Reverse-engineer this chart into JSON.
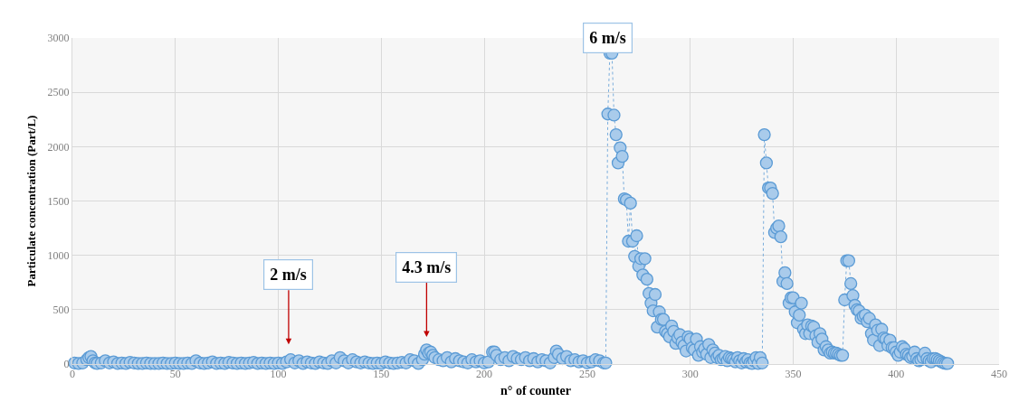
{
  "chart_data": {
    "type": "line",
    "xlabel": "n° of counter",
    "ylabel": "Particulate concentration (Part/L)",
    "xlim": [
      0,
      450
    ],
    "xticks": [
      0,
      50,
      100,
      150,
      200,
      250,
      300,
      350,
      400,
      450
    ],
    "ylim": [
      0,
      3000
    ],
    "yticks": [
      0,
      500,
      1000,
      1500,
      2000,
      2500,
      3000
    ],
    "grid": true,
    "marker": "circle",
    "line_style": "dotted",
    "annotations": [
      "2 m/s",
      "4.3 m/s",
      "6 m/s"
    ],
    "series": [
      {
        "color": "#a9cbeb",
        "x": [
          1,
          3,
          5,
          7,
          8,
          9,
          10,
          11,
          12,
          14,
          16,
          18,
          20,
          22,
          24,
          26,
          28,
          30,
          32,
          34,
          36,
          38,
          40,
          42,
          44,
          46,
          48,
          50,
          52,
          54,
          56,
          58,
          60,
          62,
          64,
          66,
          68,
          70,
          72,
          74,
          76,
          78,
          80,
          82,
          84,
          86,
          88,
          90,
          92,
          94,
          96,
          98,
          100,
          102,
          104,
          106,
          108,
          110,
          112,
          114,
          116,
          118,
          120,
          122,
          124,
          126,
          128,
          130,
          132,
          134,
          136,
          138,
          140,
          142,
          144,
          146,
          148,
          150,
          152,
          154,
          156,
          158,
          160,
          162,
          164,
          166,
          168,
          170,
          171,
          172,
          173,
          174,
          175,
          176,
          178,
          180,
          182,
          184,
          186,
          188,
          190,
          192,
          194,
          196,
          198,
          200,
          202,
          204,
          205,
          206,
          208,
          210,
          212,
          214,
          216,
          218,
          220,
          222,
          224,
          226,
          228,
          230,
          232,
          234,
          235,
          236,
          238,
          240,
          242,
          244,
          246,
          248,
          250,
          252,
          254,
          256,
          258,
          259,
          260,
          261,
          262,
          263,
          264,
          265,
          266,
          267,
          268,
          269,
          270,
          271,
          272,
          273,
          274,
          275,
          276,
          277,
          278,
          279,
          280,
          281,
          282,
          283,
          284,
          285,
          286,
          287,
          288,
          289,
          290,
          291,
          292,
          293,
          294,
          295,
          296,
          297,
          298,
          299,
          300,
          301,
          302,
          303,
          304,
          305,
          306,
          307,
          308,
          309,
          310,
          311,
          312,
          313,
          314,
          315,
          316,
          317,
          318,
          319,
          320,
          321,
          322,
          323,
          324,
          325,
          326,
          327,
          328,
          329,
          330,
          331,
          332,
          333,
          334,
          335,
          336,
          337,
          338,
          339,
          340,
          341,
          342,
          343,
          344,
          345,
          346,
          347,
          348,
          349,
          350,
          351,
          352,
          353,
          354,
          355,
          356,
          357,
          358,
          359,
          360,
          361,
          362,
          363,
          364,
          365,
          366,
          367,
          368,
          369,
          370,
          371,
          372,
          373,
          374,
          375,
          376,
          377,
          378,
          379,
          380,
          381,
          382,
          383,
          384,
          385,
          386,
          387,
          388,
          389,
          390,
          391,
          392,
          393,
          394,
          395,
          396,
          397,
          398,
          399,
          400,
          401,
          402,
          403,
          404,
          405,
          406,
          407,
          408,
          409,
          410,
          411,
          412,
          413,
          414,
          415,
          416,
          417,
          418,
          419,
          420,
          421,
          422,
          423,
          424,
          425
        ],
        "values": [
          10,
          5,
          10,
          40,
          60,
          70,
          30,
          10,
          5,
          10,
          30,
          10,
          20,
          5,
          10,
          5,
          15,
          10,
          5,
          5,
          10,
          5,
          5,
          5,
          10,
          5,
          5,
          10,
          5,
          5,
          10,
          5,
          30,
          10,
          5,
          10,
          20,
          5,
          10,
          5,
          15,
          10,
          5,
          10,
          5,
          10,
          15,
          5,
          10,
          5,
          10,
          5,
          10,
          5,
          20,
          40,
          10,
          30,
          5,
          20,
          10,
          5,
          20,
          10,
          5,
          30,
          10,
          60,
          30,
          10,
          40,
          20,
          10,
          20,
          10,
          5,
          10,
          5,
          20,
          10,
          5,
          10,
          15,
          10,
          40,
          30,
          5,
          40,
          90,
          130,
          100,
          110,
          80,
          60,
          40,
          30,
          60,
          20,
          50,
          30,
          20,
          10,
          40,
          20,
          30,
          10,
          20,
          110,
          110,
          80,
          40,
          60,
          30,
          70,
          50,
          40,
          60,
          30,
          50,
          20,
          40,
          30,
          10,
          60,
          120,
          90,
          50,
          70,
          30,
          40,
          20,
          30,
          10,
          20,
          40,
          30,
          10,
          10,
          2300,
          2860,
          2860,
          2290,
          2110,
          1850,
          1990,
          1910,
          1520,
          1510,
          1130,
          1480,
          1130,
          990,
          1180,
          900,
          970,
          820,
          970,
          780,
          650,
          560,
          490,
          640,
          340,
          480,
          410,
          410,
          300,
          280,
          250,
          350,
          300,
          190,
          240,
          270,
          200,
          170,
          120,
          250,
          230,
          150,
          130,
          230,
          80,
          160,
          110,
          140,
          90,
          180,
          60,
          130,
          100,
          60,
          80,
          40,
          50,
          70,
          30,
          60,
          50,
          40,
          20,
          60,
          30,
          10,
          50,
          20,
          40,
          10,
          5,
          30,
          60,
          5,
          60,
          10,
          2110,
          1850,
          1620,
          1620,
          1570,
          1210,
          1250,
          1270,
          1170,
          760,
          840,
          740,
          560,
          610,
          610,
          480,
          380,
          450,
          560,
          320,
          280,
          360,
          280,
          350,
          340,
          260,
          200,
          280,
          230,
          130,
          160,
          130,
          100,
          110,
          100,
          100,
          90,
          80,
          80,
          590,
          950,
          950,
          740,
          630,
          540,
          500,
          490,
          420,
          440,
          450,
          390,
          420,
          280,
          220,
          360,
          310,
          170,
          320,
          240,
          230,
          170,
          220,
          150,
          150,
          110,
          80,
          110,
          160,
          140,
          90,
          80,
          60,
          70,
          110,
          50,
          30,
          40,
          60,
          100,
          50,
          30,
          20,
          50,
          50,
          40,
          30,
          20,
          10,
          5,
          5
        ]
      }
    ]
  }
}
